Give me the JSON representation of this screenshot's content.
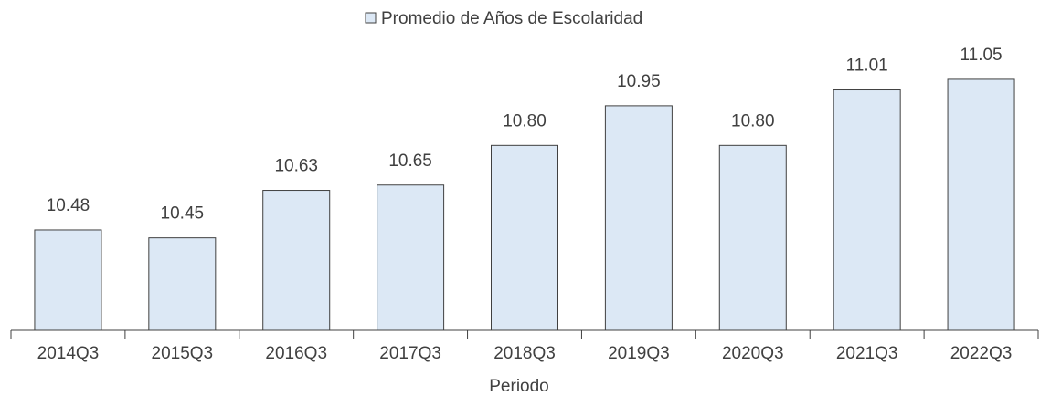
{
  "chart_data": {
    "type": "bar",
    "categories": [
      "2014Q3",
      "2015Q3",
      "2016Q3",
      "2017Q3",
      "2018Q3",
      "2019Q3",
      "2020Q3",
      "2021Q3",
      "2022Q3"
    ],
    "series": [
      {
        "name": "Promedio de Años de Escolaridad",
        "color": "#dce8f5",
        "values": [
          10.48,
          10.45,
          10.63,
          10.65,
          10.8,
          10.95,
          10.8,
          11.01,
          11.05
        ],
        "value_labels": [
          "10.48",
          "10.45",
          "10.63",
          "10.65",
          "10.80",
          "10.95",
          "10.80",
          "11.01",
          "11.05"
        ]
      }
    ],
    "x_label": "Periodo",
    "ylim": [
      10.1,
      11.2
    ],
    "legend": "top"
  }
}
